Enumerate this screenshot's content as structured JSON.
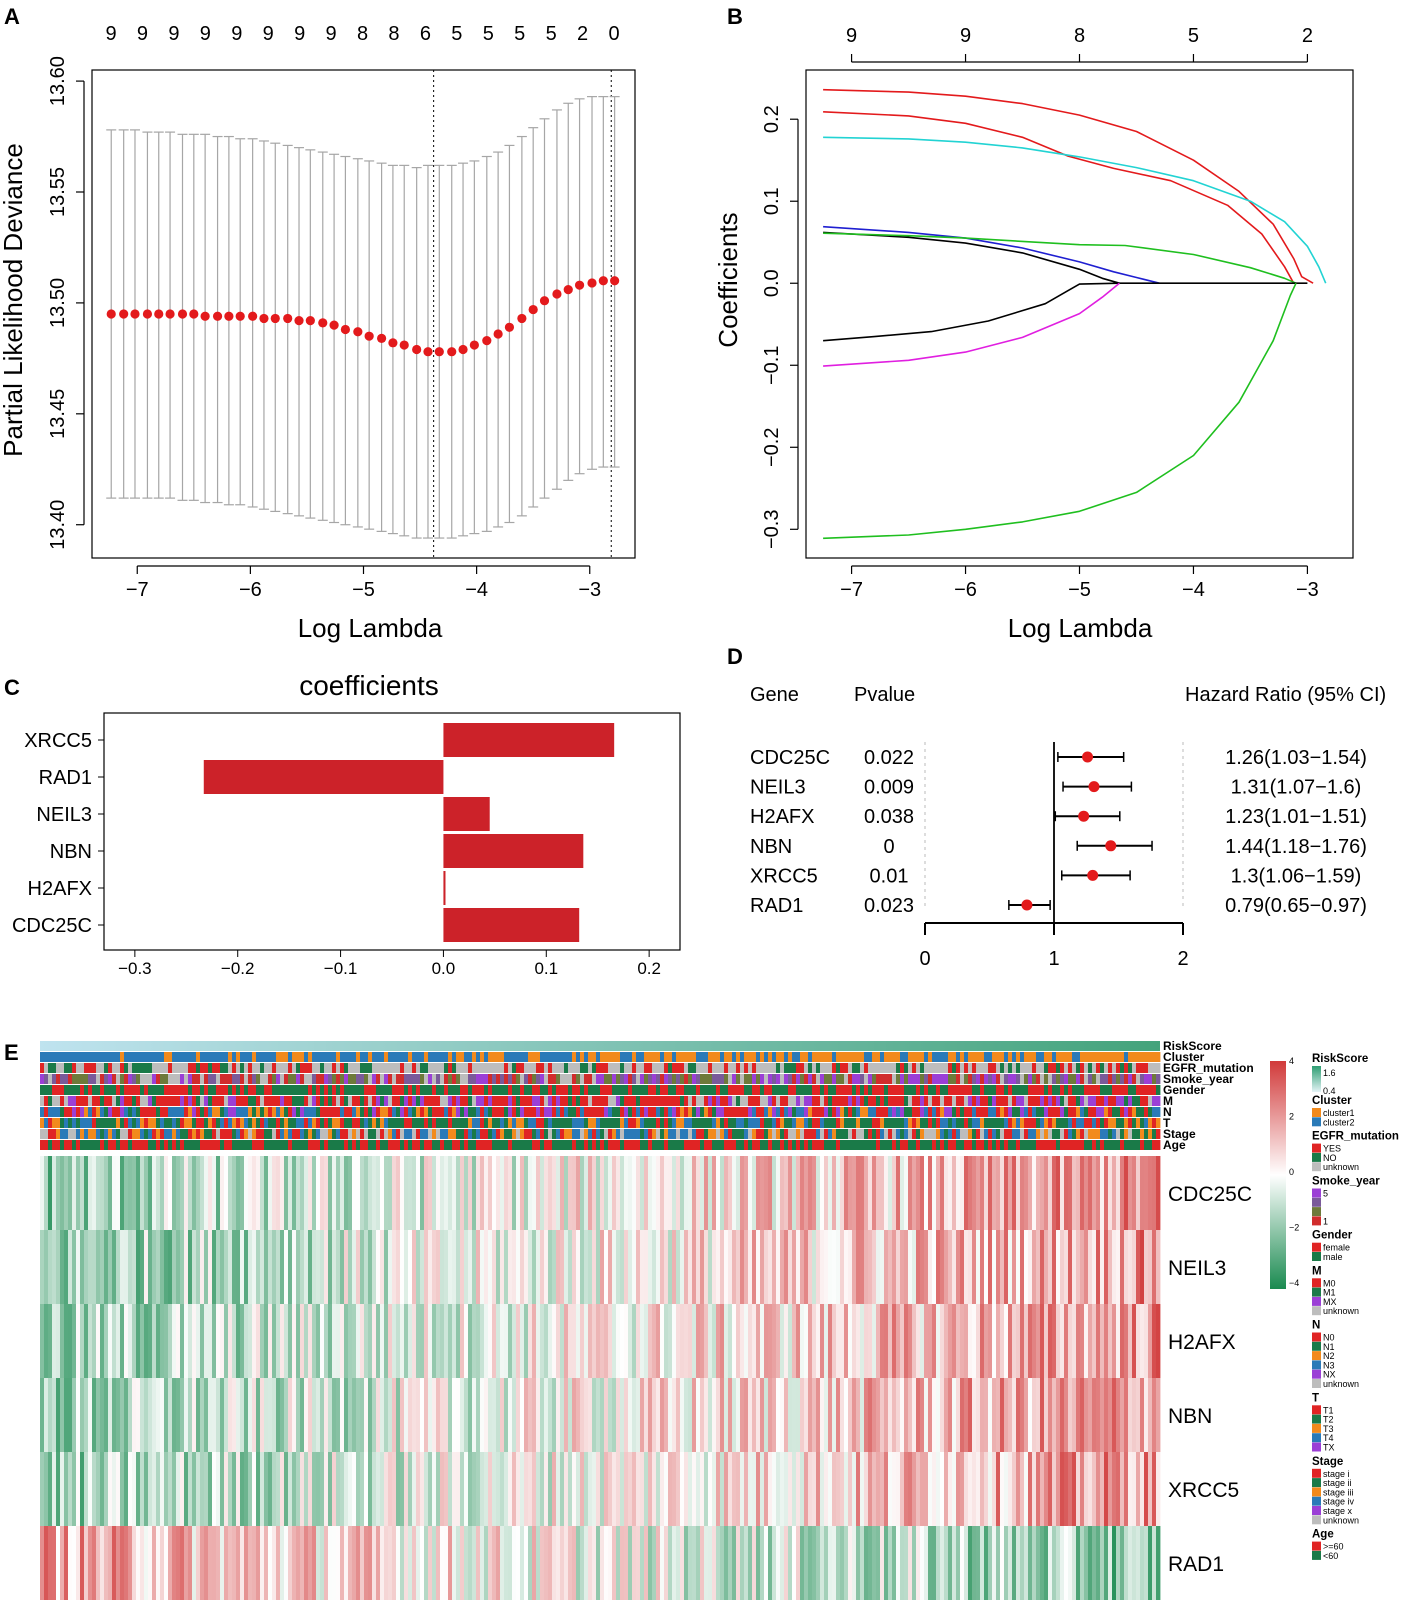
{
  "panels": {
    "a": "A",
    "b": "B",
    "c": "C",
    "d": "D",
    "e": "E"
  },
  "colors": {
    "red": "#e31a1c",
    "bar": "#cc2229",
    "grey": "#9e9e9e",
    "axis": "#000000"
  },
  "chart_data": [
    {
      "id": "A",
      "type": "scatter",
      "xlabel": "Log Lambda",
      "ylabel": "Partial Likelihood Deviance",
      "xlim": [
        -7.4,
        -2.6
      ],
      "ylim": [
        13.385,
        13.605
      ],
      "xticks": [
        -7,
        -6,
        -5,
        -4,
        -3
      ],
      "yticks": [
        13.4,
        13.45,
        13.5,
        13.55,
        13.6
      ],
      "ytick_labels": [
        "13.40",
        "13.45",
        "13.50",
        "13.55",
        "13.60"
      ],
      "top_axis_labels": [
        "9",
        "9",
        "9",
        "9",
        "9",
        "9",
        "9",
        "9",
        "8",
        "8",
        "6",
        "5",
        "5",
        "5",
        "5",
        "2",
        "0"
      ],
      "vlines": [
        -4.38,
        -2.81
      ],
      "x": [
        -7.23,
        -7.12,
        -7.02,
        -6.91,
        -6.81,
        -6.71,
        -6.6,
        -6.5,
        -6.4,
        -6.29,
        -6.19,
        -6.09,
        -5.98,
        -5.88,
        -5.78,
        -5.67,
        -5.57,
        -5.47,
        -5.36,
        -5.26,
        -5.16,
        -5.05,
        -4.95,
        -4.84,
        -4.74,
        -4.64,
        -4.53,
        -4.43,
        -4.33,
        -4.22,
        -4.12,
        -4.02,
        -3.91,
        -3.81,
        -3.71,
        -3.6,
        -3.5,
        -3.4,
        -3.29,
        -3.19,
        -3.09,
        -2.98,
        -2.88,
        -2.78
      ],
      "y": [
        13.495,
        13.495,
        13.495,
        13.495,
        13.495,
        13.495,
        13.495,
        13.495,
        13.494,
        13.494,
        13.494,
        13.494,
        13.494,
        13.493,
        13.493,
        13.493,
        13.492,
        13.492,
        13.491,
        13.49,
        13.488,
        13.487,
        13.485,
        13.484,
        13.482,
        13.481,
        13.479,
        13.478,
        13.478,
        13.478,
        13.479,
        13.481,
        13.483,
        13.486,
        13.489,
        13.493,
        13.497,
        13.501,
        13.504,
        13.506,
        13.508,
        13.509,
        13.51,
        13.51
      ],
      "upper": [
        13.578,
        13.578,
        13.578,
        13.577,
        13.577,
        13.577,
        13.576,
        13.576,
        13.576,
        13.575,
        13.575,
        13.574,
        13.574,
        13.573,
        13.572,
        13.571,
        13.57,
        13.569,
        13.568,
        13.567,
        13.566,
        13.565,
        13.564,
        13.563,
        13.562,
        13.562,
        13.561,
        13.562,
        13.562,
        13.562,
        13.563,
        13.564,
        13.566,
        13.568,
        13.571,
        13.575,
        13.579,
        13.583,
        13.587,
        13.59,
        13.592,
        13.593,
        13.593,
        13.593
      ],
      "lower": [
        13.412,
        13.412,
        13.412,
        13.412,
        13.412,
        13.412,
        13.411,
        13.411,
        13.41,
        13.41,
        13.409,
        13.409,
        13.408,
        13.407,
        13.406,
        13.405,
        13.404,
        13.403,
        13.402,
        13.401,
        13.4,
        13.399,
        13.398,
        13.397,
        13.396,
        13.395,
        13.394,
        13.394,
        13.394,
        13.394,
        13.395,
        13.396,
        13.397,
        13.399,
        13.401,
        13.404,
        13.408,
        13.412,
        13.416,
        13.42,
        13.423,
        13.425,
        13.426,
        13.426
      ]
    },
    {
      "id": "B",
      "type": "line",
      "xlabel": "Log Lambda",
      "ylabel": "Coefficients",
      "xlim": [
        -7.4,
        -2.6
      ],
      "ylim": [
        -0.335,
        0.26
      ],
      "xticks": [
        -7,
        -6,
        -5,
        -4,
        -3
      ],
      "yticks": [
        -0.3,
        -0.2,
        -0.1,
        0.0,
        0.1,
        0.2
      ],
      "ytick_labels": [
        "-0.3",
        "-0.2",
        "-0.1",
        "0.0",
        "0.1",
        "0.2"
      ],
      "top_axis_ticks": [
        -7,
        -6,
        -5,
        -4,
        -3
      ],
      "top_axis_labels": [
        "9",
        "9",
        "8",
        "5",
        "2"
      ],
      "series": [
        {
          "name": "red1",
          "color": "#e31a1c",
          "x": [
            -7.25,
            -6.5,
            -6,
            -5.5,
            -5,
            -4.5,
            -4,
            -3.6,
            -3.3,
            -3.12,
            -3.05,
            -2.95
          ],
          "y": [
            0.236,
            0.233,
            0.228,
            0.219,
            0.205,
            0.185,
            0.15,
            0.112,
            0.072,
            0.03,
            0.008,
            0
          ]
        },
        {
          "name": "red2",
          "color": "#e31a1c",
          "x": [
            -7.25,
            -6.5,
            -6,
            -5.5,
            -5.1,
            -4.7,
            -4.2,
            -3.7,
            -3.4,
            -3.2,
            -3.12
          ],
          "y": [
            0.209,
            0.204,
            0.195,
            0.178,
            0.155,
            0.14,
            0.125,
            0.095,
            0.06,
            0.02,
            0
          ]
        },
        {
          "name": "cyan",
          "color": "#22d3d3",
          "x": [
            -7.25,
            -6.5,
            -6,
            -5.5,
            -5,
            -4.5,
            -4,
            -3.5,
            -3.2,
            -3,
            -2.9,
            -2.84
          ],
          "y": [
            0.178,
            0.176,
            0.172,
            0.165,
            0.154,
            0.141,
            0.125,
            0.1,
            0.075,
            0.045,
            0.02,
            0
          ]
        },
        {
          "name": "blue",
          "color": "#1f1fd1",
          "x": [
            -7.25,
            -6.5,
            -6,
            -5.5,
            -5,
            -4.7,
            -4.5,
            -4.3
          ],
          "y": [
            0.069,
            0.062,
            0.055,
            0.043,
            0.026,
            0.014,
            0.007,
            0
          ]
        },
        {
          "name": "black1",
          "color": "#000000",
          "x": [
            -7.25,
            -6.5,
            -6,
            -5.5,
            -5,
            -4.8,
            -4.65
          ],
          "y": [
            0.062,
            0.056,
            0.049,
            0.037,
            0.017,
            0.006,
            0
          ]
        },
        {
          "name": "green1",
          "color": "#1fbf1f",
          "x": [
            -7.25,
            -6.5,
            -6,
            -5.5,
            -5,
            -4.6,
            -4,
            -3.5,
            -3.2,
            -3.1
          ],
          "y": [
            0.061,
            0.058,
            0.055,
            0.051,
            0.047,
            0.046,
            0.035,
            0.019,
            0.006,
            0
          ]
        },
        {
          "name": "black2",
          "color": "#000000",
          "x": [
            -7.25,
            -6.8,
            -6.3,
            -5.8,
            -5.3,
            -5.1,
            -5.0,
            -4.65,
            -3.0
          ],
          "y": [
            -0.07,
            -0.065,
            -0.059,
            -0.046,
            -0.025,
            -0.009,
            -0.001,
            0,
            0
          ]
        },
        {
          "name": "magenta",
          "color": "#e01fe0",
          "x": [
            -7.25,
            -6.5,
            -6,
            -5.5,
            -5,
            -4.8,
            -4.65
          ],
          "y": [
            -0.101,
            -0.094,
            -0.084,
            -0.066,
            -0.037,
            -0.017,
            0
          ]
        },
        {
          "name": "green2",
          "color": "#1fbf1f",
          "x": [
            -7.25,
            -6.5,
            -6,
            -5.5,
            -5,
            -4.5,
            -4,
            -3.6,
            -3.3,
            -3.15,
            -3.1
          ],
          "y": [
            -0.311,
            -0.307,
            -0.3,
            -0.291,
            -0.278,
            -0.255,
            -0.21,
            -0.145,
            -0.07,
            -0.015,
            0
          ]
        }
      ]
    },
    {
      "id": "C",
      "type": "bar",
      "title": "coefficients",
      "categories": [
        "XRCC5",
        "RAD1",
        "NEIL3",
        "NBN",
        "H2AFX",
        "CDC25C"
      ],
      "values": [
        0.166,
        -0.233,
        0.045,
        0.136,
        0.002,
        0.132
      ],
      "xlim": [
        -0.33,
        0.23
      ],
      "xticks": [
        -0.3,
        -0.2,
        -0.1,
        0.0,
        0.1,
        0.2
      ],
      "xtick_labels": [
        "-0.3",
        "-0.2",
        "-0.1",
        "0.0",
        "0.1",
        "0.2"
      ]
    },
    {
      "id": "D",
      "type": "scatter",
      "headers": {
        "gene": "Gene",
        "pvalue": "Pvalue",
        "hr": "Hazard Ratio (95% CI)"
      },
      "rows": [
        {
          "gene": "CDC25C",
          "pvalue": "0.022",
          "hr": 1.26,
          "lo": 1.03,
          "hi": 1.54,
          "label": "1.26(1.03−1.54)"
        },
        {
          "gene": "NEIL3",
          "pvalue": "0.009",
          "hr": 1.31,
          "lo": 1.07,
          "hi": 1.6,
          "label": "1.31(1.07−1.6)"
        },
        {
          "gene": "H2AFX",
          "pvalue": "0.038",
          "hr": 1.23,
          "lo": 1.01,
          "hi": 1.51,
          "label": "1.23(1.01−1.51)"
        },
        {
          "gene": "NBN",
          "pvalue": "0",
          "hr": 1.44,
          "lo": 1.18,
          "hi": 1.76,
          "label": "1.44(1.18−1.76)"
        },
        {
          "gene": "XRCC5",
          "pvalue": "0.01",
          "hr": 1.3,
          "lo": 1.06,
          "hi": 1.59,
          "label": "1.3(1.06−1.59)"
        },
        {
          "gene": "RAD1",
          "pvalue": "0.023",
          "hr": 0.79,
          "lo": 0.65,
          "hi": 0.97,
          "label": "0.79(0.65−0.97)"
        }
      ],
      "xticks": [
        0,
        1,
        2
      ],
      "xlim": [
        0,
        2
      ],
      "ref_line": 1
    },
    {
      "id": "E",
      "type": "heatmap",
      "annotation_tracks": [
        "RiskScore",
        "Cluster",
        "EGFR_mutation",
        "Smoke_year",
        "Gender",
        "M",
        "N",
        "T",
        "Stage",
        "Age"
      ],
      "rows": [
        "CDC25C",
        "NEIL3",
        "H2AFX",
        "NBN",
        "XRCC5",
        "RAD1"
      ],
      "colorbar": {
        "ticks": [
          4,
          2,
          0,
          -2,
          -4
        ],
        "tick_labels": [
          "4",
          "2",
          "0",
          "−2",
          "−4"
        ],
        "colors": [
          "#d13a3a",
          "#ffffff",
          "#1a8a50"
        ]
      },
      "legend": [
        {
          "title": "RiskScore",
          "items": [
            {
              "label": "1.6",
              "color": "#2e9e72"
            },
            {
              "label": "0.4",
              "color": "#e4f3f6"
            }
          ]
        },
        {
          "title": "Cluster",
          "items": [
            {
              "label": "cluster1",
              "color": "#f28a1c"
            },
            {
              "label": "cluster2",
              "color": "#2a7ab8"
            }
          ]
        },
        {
          "title": "EGFR_mutation",
          "items": [
            {
              "label": "YES",
              "color": "#e02424"
            },
            {
              "label": "NO",
              "color": "#1a7a48"
            },
            {
              "label": "unknown",
              "color": "#bdbdbd"
            }
          ]
        },
        {
          "title": "Smoke_year",
          "items": [
            {
              "label": "5",
              "color": "#9b3fd6"
            },
            {
              "label": "",
              "color": "#7a5a9a"
            },
            {
              "label": "",
              "color": "#6e7a3a"
            },
            {
              "label": "1",
              "color": "#d12c2c"
            }
          ]
        },
        {
          "title": "Gender",
          "items": [
            {
              "label": "female",
              "color": "#e02424"
            },
            {
              "label": "male",
              "color": "#1a7a48"
            }
          ]
        },
        {
          "title": "M",
          "items": [
            {
              "label": "M0",
              "color": "#e02424"
            },
            {
              "label": "M1",
              "color": "#1a7a48"
            },
            {
              "label": "MX",
              "color": "#9b3fd6"
            },
            {
              "label": "unknown",
              "color": "#bdbdbd"
            }
          ]
        },
        {
          "title": "N",
          "items": [
            {
              "label": "N0",
              "color": "#e02424"
            },
            {
              "label": "N1",
              "color": "#1a7a48"
            },
            {
              "label": "N2",
              "color": "#f28a1c"
            },
            {
              "label": "N3",
              "color": "#2a7ab8"
            },
            {
              "label": "NX",
              "color": "#9b3fd6"
            },
            {
              "label": "unknown",
              "color": "#bdbdbd"
            }
          ]
        },
        {
          "title": "T",
          "items": [
            {
              "label": "T1",
              "color": "#e02424"
            },
            {
              "label": "T2",
              "color": "#1a7a48"
            },
            {
              "label": "T3",
              "color": "#f28a1c"
            },
            {
              "label": "T4",
              "color": "#2a7ab8"
            },
            {
              "label": "TX",
              "color": "#9b3fd6"
            }
          ]
        },
        {
          "title": "Stage",
          "items": [
            {
              "label": "stage i",
              "color": "#e02424"
            },
            {
              "label": "stage ii",
              "color": "#1a7a48"
            },
            {
              "label": "stage iii",
              "color": "#f28a1c"
            },
            {
              "label": "stage iv",
              "color": "#2a7ab8"
            },
            {
              "label": "stage x",
              "color": "#9b3fd6"
            },
            {
              "label": "unknown",
              "color": "#bdbdbd"
            }
          ]
        },
        {
          "title": "Age",
          "items": [
            {
              "label": ">=60",
              "color": "#e02424"
            },
            {
              "label": "<60",
              "color": "#1a7a48"
            }
          ]
        }
      ]
    }
  ]
}
